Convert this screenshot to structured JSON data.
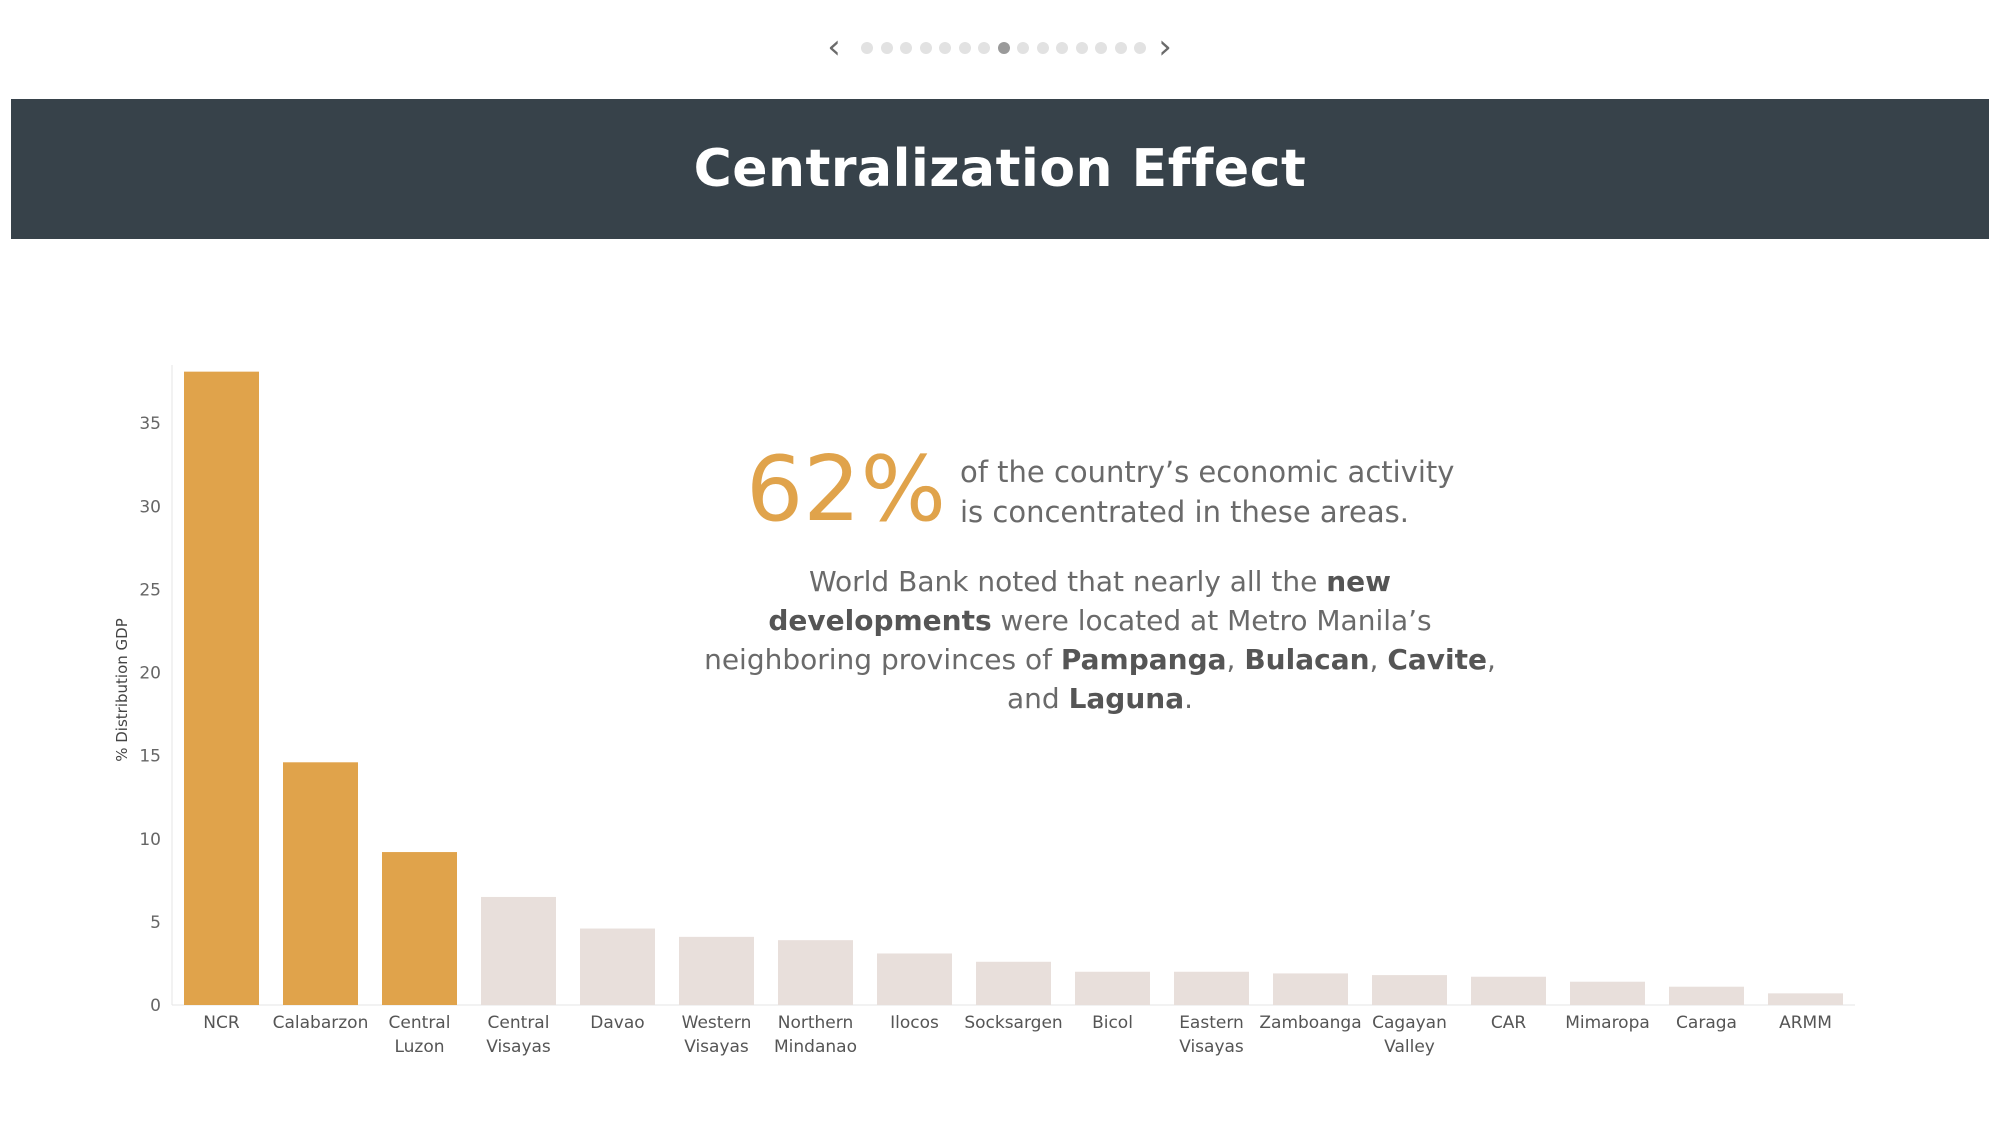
{
  "nav": {
    "dot_count": 15,
    "active_index": 7,
    "prev_icon": "chevron-left-icon",
    "next_icon": "chevron-right-icon"
  },
  "header": {
    "title": "Centralization Effect"
  },
  "callout": {
    "percentage": "62%",
    "line1": "of the country’s economic activity",
    "line2": "is concentrated in these areas.",
    "note": [
      {
        "t": "World Bank noted that nearly all the ",
        "b": false
      },
      {
        "t": "new developments",
        "b": true
      },
      {
        "t": " were located at Metro Manila’s neighboring provinces of ",
        "b": false
      },
      {
        "t": "Pampanga",
        "b": true
      },
      {
        "t": ", ",
        "b": false
      },
      {
        "t": "Bulacan",
        "b": true
      },
      {
        "t": ", ",
        "b": false
      },
      {
        "t": "Cavite",
        "b": true
      },
      {
        "t": ", and ",
        "b": false
      },
      {
        "t": "Laguna",
        "b": true
      },
      {
        "t": ".",
        "b": false
      }
    ]
  },
  "colors": {
    "highlight": "#e0a34b",
    "muted": "#e8dfdb",
    "banner": "#37424a"
  },
  "chart_data": {
    "type": "bar",
    "title": "",
    "xlabel": "",
    "ylabel": "% Distribution GDP",
    "ylim": [
      0,
      38.5
    ],
    "yticks": [
      0,
      5,
      10,
      15,
      20,
      25,
      30,
      35
    ],
    "categories": [
      [
        "NCR"
      ],
      [
        "Calabarzon"
      ],
      [
        "Central",
        "Luzon"
      ],
      [
        "Central",
        "Visayas"
      ],
      [
        "Davao"
      ],
      [
        "Western",
        "Visayas"
      ],
      [
        "Northern",
        "Mindanao"
      ],
      [
        "Ilocos"
      ],
      [
        "Socksargen"
      ],
      [
        "Bicol"
      ],
      [
        "Eastern",
        "Visayas"
      ],
      [
        "Zamboanga"
      ],
      [
        "Cagayan",
        "Valley"
      ],
      [
        "CAR"
      ],
      [
        "Mimaropa"
      ],
      [
        "Caraga"
      ],
      [
        "ARMM"
      ]
    ],
    "values": [
      38.1,
      14.6,
      9.2,
      6.5,
      4.6,
      4.1,
      3.9,
      3.1,
      2.6,
      2.0,
      2.0,
      1.9,
      1.8,
      1.7,
      1.4,
      1.1,
      0.7
    ],
    "highlighted": [
      true,
      true,
      true,
      false,
      false,
      false,
      false,
      false,
      false,
      false,
      false,
      false,
      false,
      false,
      false,
      false,
      false
    ],
    "grid": false,
    "legend": "none"
  }
}
